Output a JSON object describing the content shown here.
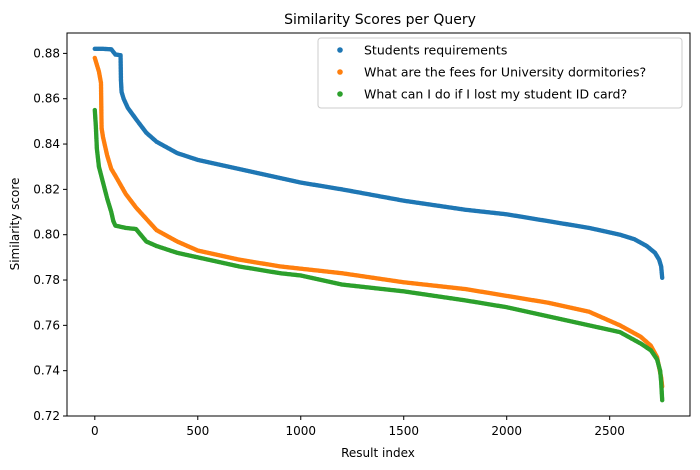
{
  "chart_data": {
    "type": "scatter",
    "title": "Similarity Scores per Query",
    "xlabel": "Result index",
    "ylabel": "Similarity score",
    "xlim": [
      -135,
      2890
    ],
    "ylim": [
      0.72,
      0.889
    ],
    "xticks": [
      0,
      500,
      1000,
      1500,
      2000,
      2500
    ],
    "yticks": [
      0.72,
      0.74,
      0.76,
      0.78,
      0.8,
      0.82,
      0.84,
      0.86,
      0.88
    ],
    "ytick_labels": [
      "0.72",
      "0.74",
      "0.76",
      "0.78",
      "0.80",
      "0.82",
      "0.84",
      "0.86",
      "0.88"
    ],
    "grid": false,
    "legend_position": "top-right",
    "series": [
      {
        "name": "Students requirements",
        "color": "#1f77b4",
        "points": [
          [
            0,
            0.882
          ],
          [
            40,
            0.882
          ],
          [
            80,
            0.8818
          ],
          [
            100,
            0.8795
          ],
          [
            125,
            0.8792
          ],
          [
            127,
            0.868
          ],
          [
            130,
            0.863
          ],
          [
            140,
            0.86
          ],
          [
            160,
            0.856
          ],
          [
            200,
            0.851
          ],
          [
            250,
            0.845
          ],
          [
            300,
            0.841
          ],
          [
            400,
            0.836
          ],
          [
            500,
            0.833
          ],
          [
            700,
            0.829
          ],
          [
            900,
            0.825
          ],
          [
            1000,
            0.823
          ],
          [
            1200,
            0.82
          ],
          [
            1500,
            0.815
          ],
          [
            1800,
            0.811
          ],
          [
            2000,
            0.809
          ],
          [
            2200,
            0.806
          ],
          [
            2400,
            0.803
          ],
          [
            2550,
            0.8
          ],
          [
            2620,
            0.798
          ],
          [
            2680,
            0.795
          ],
          [
            2720,
            0.792
          ],
          [
            2740,
            0.789
          ],
          [
            2750,
            0.786
          ],
          [
            2755,
            0.781
          ]
        ]
      },
      {
        "name": "What are the fees for University dormitories?",
        "color": "#ff7f0e",
        "points": [
          [
            0,
            0.878
          ],
          [
            10,
            0.875
          ],
          [
            20,
            0.872
          ],
          [
            30,
            0.867
          ],
          [
            33,
            0.847
          ],
          [
            40,
            0.843
          ],
          [
            60,
            0.835
          ],
          [
            80,
            0.829
          ],
          [
            100,
            0.826
          ],
          [
            150,
            0.818
          ],
          [
            200,
            0.812
          ],
          [
            300,
            0.802
          ],
          [
            400,
            0.797
          ],
          [
            500,
            0.793
          ],
          [
            700,
            0.789
          ],
          [
            900,
            0.786
          ],
          [
            1000,
            0.785
          ],
          [
            1200,
            0.783
          ],
          [
            1500,
            0.779
          ],
          [
            1800,
            0.776
          ],
          [
            2000,
            0.773
          ],
          [
            2200,
            0.77
          ],
          [
            2400,
            0.766
          ],
          [
            2550,
            0.76
          ],
          [
            2650,
            0.755
          ],
          [
            2700,
            0.751
          ],
          [
            2730,
            0.746
          ],
          [
            2750,
            0.737
          ],
          [
            2755,
            0.733
          ]
        ]
      },
      {
        "name": "What can I do if I lost my student ID card?",
        "color": "#2ca02c",
        "points": [
          [
            0,
            0.855
          ],
          [
            5,
            0.848
          ],
          [
            10,
            0.838
          ],
          [
            20,
            0.83
          ],
          [
            40,
            0.823
          ],
          [
            60,
            0.816
          ],
          [
            80,
            0.81
          ],
          [
            90,
            0.806
          ],
          [
            100,
            0.804
          ],
          [
            150,
            0.803
          ],
          [
            200,
            0.8025
          ],
          [
            250,
            0.797
          ],
          [
            300,
            0.795
          ],
          [
            400,
            0.792
          ],
          [
            500,
            0.79
          ],
          [
            700,
            0.786
          ],
          [
            900,
            0.783
          ],
          [
            1000,
            0.782
          ],
          [
            1200,
            0.778
          ],
          [
            1500,
            0.775
          ],
          [
            1800,
            0.771
          ],
          [
            2000,
            0.768
          ],
          [
            2200,
            0.764
          ],
          [
            2400,
            0.76
          ],
          [
            2550,
            0.757
          ],
          [
            2650,
            0.752
          ],
          [
            2700,
            0.749
          ],
          [
            2730,
            0.745
          ],
          [
            2745,
            0.74
          ],
          [
            2750,
            0.735
          ],
          [
            2755,
            0.727
          ]
        ]
      }
    ]
  }
}
